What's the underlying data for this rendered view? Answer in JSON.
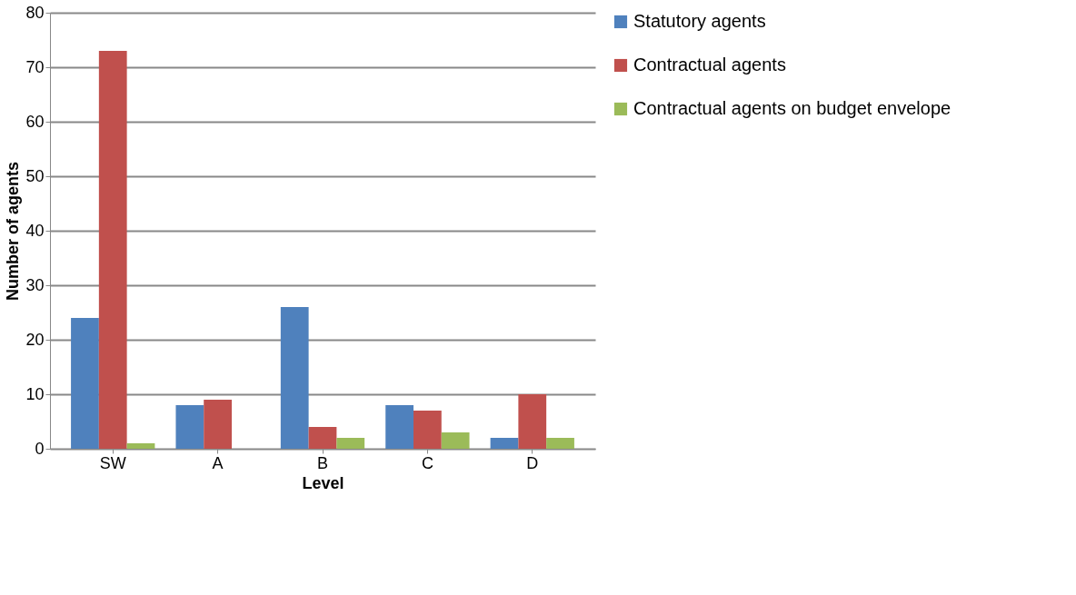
{
  "chart_data": {
    "type": "bar",
    "xlabel": "Level",
    "ylabel": "Number of agents",
    "categories": [
      "SW",
      "A",
      "B",
      "C",
      "D"
    ],
    "series": [
      {
        "name": "Statutory agents",
        "color": "#4f81bd",
        "values": [
          24,
          8,
          26,
          8,
          2
        ]
      },
      {
        "name": "Contractual agents",
        "color": "#c0504d",
        "values": [
          73,
          9,
          4,
          7,
          10
        ]
      },
      {
        "name": "Contractual agents on budget envelope",
        "color": "#9bbb59",
        "values": [
          1,
          0,
          2,
          3,
          2
        ]
      }
    ],
    "ylim": [
      0,
      80
    ],
    "yticks": [
      0,
      10,
      20,
      30,
      40,
      50,
      60,
      70,
      80
    ],
    "grid": "y",
    "legend": "right"
  }
}
